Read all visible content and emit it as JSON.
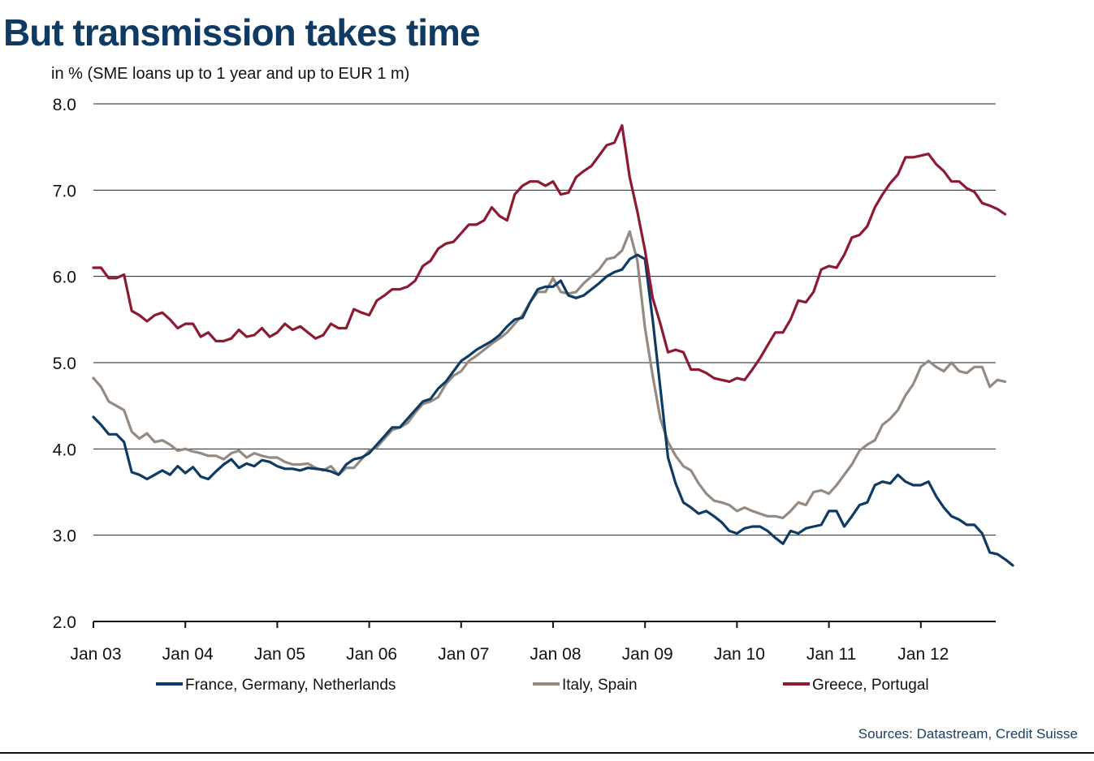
{
  "title": "But transmission takes time",
  "subtitle": "in % (SME loans up to 1 year and up to EUR 1 m)",
  "source": "Sources: Datastream, Credit Suisse",
  "colors": {
    "title": "#0e3a63",
    "series1": "#0e3a63",
    "series2": "#948a81",
    "series3": "#8b1a32"
  },
  "chart_data": {
    "type": "line",
    "title": "But transmission takes time",
    "ylabel": "in % (SME loans up to 1 year and up to EUR 1 m)",
    "xlabel": "",
    "ylim": [
      2.0,
      8.0
    ],
    "yticks": [
      "2.0",
      "3.0",
      "4.0",
      "5.0",
      "6.0",
      "7.0",
      "8.0"
    ],
    "xticks": [
      "Jan 03",
      "Jan 04",
      "Jan 05",
      "Jan 06",
      "Jan 07",
      "Jan 08",
      "Jan 09",
      "Jan 10",
      "Jan 11",
      "Jan 12"
    ],
    "x_start": "Jan 03",
    "x_step": "monthly",
    "grid": "horizontal",
    "legend_position": "bottom",
    "series": [
      {
        "name": "France, Germany, Netherlands",
        "color": "#0e3a63",
        "values": [
          4.37,
          4.28,
          4.17,
          4.17,
          4.08,
          3.73,
          3.7,
          3.65,
          3.7,
          3.75,
          3.7,
          3.8,
          3.72,
          3.79,
          3.68,
          3.65,
          3.74,
          3.82,
          3.88,
          3.78,
          3.83,
          3.8,
          3.87,
          3.85,
          3.8,
          3.77,
          3.77,
          3.75,
          3.78,
          3.77,
          3.76,
          3.74,
          3.7,
          3.82,
          3.88,
          3.9,
          3.95,
          4.05,
          4.15,
          4.25,
          4.25,
          4.35,
          4.45,
          4.55,
          4.58,
          4.7,
          4.78,
          4.9,
          5.02,
          5.08,
          5.15,
          5.2,
          5.25,
          5.32,
          5.42,
          5.5,
          5.52,
          5.7,
          5.85,
          5.88,
          5.88,
          5.95,
          5.78,
          5.75,
          5.78,
          5.85,
          5.92,
          6.0,
          6.05,
          6.08,
          6.2,
          6.25,
          6.2,
          5.5,
          4.7,
          3.9,
          3.6,
          3.38,
          3.32,
          3.25,
          3.28,
          3.22,
          3.15,
          3.05,
          3.02,
          3.08,
          3.1,
          3.1,
          3.05,
          2.97,
          2.9,
          3.05,
          3.02,
          3.08,
          3.1,
          3.12,
          3.28,
          3.28,
          3.1,
          3.22,
          3.35,
          3.38,
          3.58,
          3.62,
          3.6,
          3.7,
          3.62,
          3.58,
          3.58,
          3.62,
          3.45,
          3.32,
          3.22,
          3.18,
          3.12,
          3.12,
          3.02,
          2.8,
          2.78,
          2.72,
          2.65
        ]
      },
      {
        "name": "Italy, Spain",
        "color": "#948a81",
        "values": [
          4.82,
          4.72,
          4.55,
          4.5,
          4.45,
          4.2,
          4.12,
          4.18,
          4.08,
          4.1,
          4.05,
          3.98,
          4.0,
          3.97,
          3.95,
          3.92,
          3.92,
          3.88,
          3.95,
          3.98,
          3.9,
          3.95,
          3.92,
          3.9,
          3.9,
          3.85,
          3.82,
          3.82,
          3.83,
          3.78,
          3.75,
          3.8,
          3.7,
          3.78,
          3.78,
          3.88,
          3.98,
          4.02,
          4.12,
          4.22,
          4.25,
          4.3,
          4.42,
          4.52,
          4.55,
          4.6,
          4.75,
          4.85,
          4.9,
          5.02,
          5.08,
          5.15,
          5.22,
          5.28,
          5.35,
          5.45,
          5.55,
          5.7,
          5.82,
          5.82,
          5.98,
          5.82,
          5.8,
          5.82,
          5.92,
          6.0,
          6.08,
          6.2,
          6.22,
          6.3,
          6.52,
          6.18,
          5.4,
          4.85,
          4.35,
          4.08,
          3.92,
          3.8,
          3.75,
          3.6,
          3.48,
          3.4,
          3.38,
          3.35,
          3.28,
          3.32,
          3.28,
          3.25,
          3.22,
          3.22,
          3.2,
          3.28,
          3.38,
          3.35,
          3.5,
          3.52,
          3.48,
          3.58,
          3.7,
          3.82,
          3.98,
          4.05,
          4.1,
          4.28,
          4.35,
          4.45,
          4.62,
          4.75,
          4.95,
          5.02,
          4.95,
          4.9,
          5.0,
          4.9,
          4.88,
          4.95,
          4.95,
          4.72,
          4.8,
          4.78
        ]
      },
      {
        "name": "Greece, Portugal",
        "color": "#8b1a32",
        "values": [
          6.1,
          6.1,
          5.98,
          5.98,
          6.02,
          5.6,
          5.55,
          5.48,
          5.55,
          5.58,
          5.5,
          5.4,
          5.45,
          5.45,
          5.3,
          5.35,
          5.25,
          5.25,
          5.28,
          5.38,
          5.3,
          5.32,
          5.4,
          5.3,
          5.35,
          5.45,
          5.38,
          5.42,
          5.35,
          5.28,
          5.32,
          5.45,
          5.4,
          5.4,
          5.62,
          5.58,
          5.55,
          5.72,
          5.78,
          5.85,
          5.85,
          5.88,
          5.95,
          6.12,
          6.18,
          6.32,
          6.38,
          6.4,
          6.5,
          6.6,
          6.6,
          6.65,
          6.8,
          6.7,
          6.65,
          6.95,
          7.05,
          7.1,
          7.1,
          7.05,
          7.1,
          6.95,
          6.97,
          7.15,
          7.22,
          7.28,
          7.4,
          7.52,
          7.55,
          7.75,
          7.15,
          6.75,
          6.3,
          5.75,
          5.45,
          5.12,
          5.15,
          5.12,
          4.92,
          4.92,
          4.88,
          4.82,
          4.8,
          4.78,
          4.82,
          4.8,
          4.92,
          5.05,
          5.2,
          5.35,
          5.35,
          5.5,
          5.72,
          5.7,
          5.82,
          6.08,
          6.12,
          6.1,
          6.25,
          6.45,
          6.48,
          6.58,
          6.8,
          6.95,
          7.08,
          7.18,
          7.38,
          7.38,
          7.4,
          7.42,
          7.3,
          7.22,
          7.1,
          7.1,
          7.02,
          6.98,
          6.85,
          6.82,
          6.78,
          6.72
        ]
      }
    ]
  }
}
